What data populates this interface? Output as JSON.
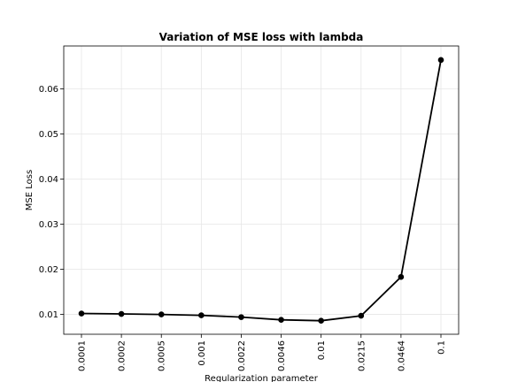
{
  "chart_data": {
    "type": "line",
    "title": "Variation of MSE loss with lambda",
    "xlabel": "Regularization parameter",
    "ylabel": "MSE Loss",
    "categories": [
      "0.0001",
      "0.0002",
      "0.0005",
      "0.001",
      "0.0022",
      "0.0046",
      "0.01",
      "0.0215",
      "0.0464",
      "0.1"
    ],
    "values": [
      0.0102,
      0.0101,
      0.01,
      0.0098,
      0.0094,
      0.0088,
      0.0086,
      0.0097,
      0.0183,
      0.0664
    ],
    "yticks": [
      "0.01",
      "0.02",
      "0.03",
      "0.04",
      "0.05",
      "0.06"
    ],
    "ylim": [
      0.0056,
      0.0695
    ],
    "grid": true,
    "line_color": "#000000"
  }
}
